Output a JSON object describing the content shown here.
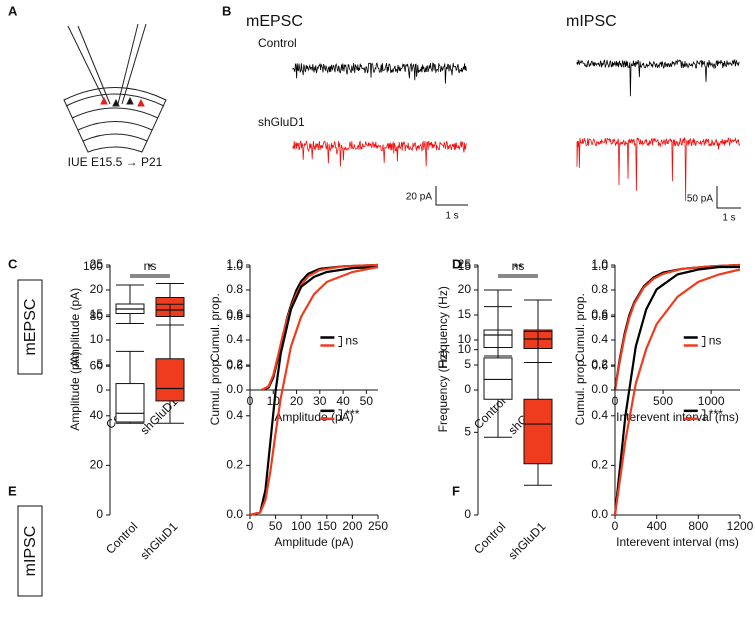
{
  "panel_labels": [
    "A",
    "B",
    "C",
    "D",
    "E",
    "F"
  ],
  "diagram": {
    "caption": "IUE E15.5 → P21"
  },
  "traces": {
    "columns": [
      "mEPSC",
      "mIPSC"
    ],
    "rows": [
      "Control",
      "shGluD1"
    ],
    "scalebars": [
      {
        "y": "20 pA",
        "x": "1 s"
      },
      {
        "y": "50 pA",
        "x": "1 s"
      }
    ]
  },
  "row_labels": [
    "mEPSC",
    "mIPSC"
  ],
  "chart_data": [
    {
      "type": "box",
      "ylabel": "Amplitude (pA)",
      "categories": [
        "Control",
        "shGluD1"
      ],
      "colors": [
        "#ffffff",
        "#f03c1e"
      ],
      "boxes": [
        {
          "min": 13.3,
          "q1": 15.3,
          "median": 16.2,
          "q3": 17.2,
          "max": 21
        },
        {
          "min": 13,
          "q1": 14.7,
          "median": 16,
          "q3": 18.5,
          "max": 21.3
        }
      ],
      "significance": "ns",
      "ylim": [
        0,
        25
      ],
      "yticks": [
        0,
        5,
        10,
        15,
        20,
        25
      ]
    },
    {
      "type": "cdf",
      "xlabel": "Amplitude (pA)",
      "ylabel": "Cumul. prop.",
      "annotation": "ns",
      "series": [
        {
          "color": "#000000",
          "x": [
            5,
            8,
            10,
            12,
            14,
            16,
            18,
            20,
            22,
            25,
            30,
            40,
            55
          ],
          "values": [
            0,
            0.02,
            0.1,
            0.25,
            0.42,
            0.58,
            0.7,
            0.8,
            0.87,
            0.93,
            0.97,
            0.99,
            1
          ]
        },
        {
          "color": "#f03c1e",
          "x": [
            5,
            8,
            10,
            12,
            14,
            16,
            18,
            20,
            22,
            25,
            30,
            40,
            55
          ],
          "values": [
            0,
            0.03,
            0.12,
            0.27,
            0.43,
            0.57,
            0.68,
            0.77,
            0.84,
            0.91,
            0.96,
            0.99,
            1
          ]
        }
      ],
      "xlim": [
        0,
        55
      ],
      "xticks": [
        0,
        10,
        20,
        30,
        40,
        50
      ],
      "ylim": [
        0,
        1
      ],
      "yticks": [
        {
          "value": 0,
          "label": "0.0"
        },
        0.2,
        0.4,
        0.6,
        0.8,
        {
          "value": 1,
          "label": "1.0"
        }
      ]
    },
    {
      "type": "box",
      "ylabel": "Frequency (Hz)",
      "categories": [
        "Control",
        "shGluD1"
      ],
      "colors": [
        "#ffffff",
        "#f03c1e"
      ],
      "boxes": [
        {
          "min": 6.8,
          "q1": 8.5,
          "median": 11,
          "q3": 12,
          "max": 20
        },
        {
          "min": 5.5,
          "q1": 8.3,
          "median": 10.2,
          "q3": 12,
          "max": 18
        }
      ],
      "significance": "ns",
      "ylim": [
        0,
        25
      ],
      "yticks": [
        0,
        5,
        10,
        15,
        20,
        25
      ]
    },
    {
      "type": "cdf",
      "xlabel": "Interevent interval (ms)",
      "ylabel": "Cumul. prop.",
      "annotation": "ns",
      "series": [
        {
          "color": "#000000",
          "x": [
            0,
            50,
            100,
            150,
            200,
            300,
            400,
            500,
            700,
            1000,
            1300
          ],
          "values": [
            0,
            0.25,
            0.45,
            0.6,
            0.7,
            0.83,
            0.9,
            0.94,
            0.97,
            0.99,
            1
          ]
        },
        {
          "color": "#f03c1e",
          "x": [
            0,
            50,
            100,
            150,
            200,
            300,
            400,
            500,
            700,
            1000,
            1300
          ],
          "values": [
            0,
            0.23,
            0.43,
            0.58,
            0.69,
            0.82,
            0.89,
            0.93,
            0.97,
            0.99,
            1
          ]
        }
      ],
      "xlim": [
        0,
        1300
      ],
      "xticks": [
        0,
        500,
        1000
      ],
      "ylim": [
        0,
        1
      ],
      "yticks": [
        {
          "value": 0,
          "label": "0.0"
        },
        0.2,
        0.4,
        0.6,
        0.8,
        {
          "value": 1,
          "label": "1.0"
        }
      ]
    },
    {
      "type": "box",
      "ylabel": "Amplitude (pA)",
      "categories": [
        "Control",
        "shGluD1"
      ],
      "colors": [
        "#ffffff",
        "#f03c1e"
      ],
      "boxes": [
        {
          "min": 37,
          "q1": 37.5,
          "median": 41,
          "q3": 53,
          "max": 66
        },
        {
          "min": 37,
          "q1": 46,
          "median": 51,
          "q3": 63,
          "max": 85
        }
      ],
      "significance": "*",
      "ylim": [
        0,
        100
      ],
      "yticks": [
        0,
        20,
        40,
        60,
        80,
        100
      ]
    },
    {
      "type": "cdf",
      "xlabel": "Amplitude (pA)",
      "ylabel": "Cumul. prop.",
      "annotation": "***",
      "series": [
        {
          "color": "#000000",
          "x": [
            0,
            20,
            30,
            40,
            50,
            60,
            80,
            100,
            125,
            150,
            200,
            250
          ],
          "values": [
            0,
            0.01,
            0.1,
            0.3,
            0.5,
            0.65,
            0.83,
            0.92,
            0.96,
            0.98,
            0.995,
            1
          ]
        },
        {
          "color": "#f03c1e",
          "x": [
            0,
            20,
            30,
            40,
            50,
            60,
            80,
            100,
            125,
            150,
            200,
            250
          ],
          "values": [
            0,
            0.01,
            0.06,
            0.18,
            0.33,
            0.47,
            0.68,
            0.8,
            0.89,
            0.94,
            0.98,
            1
          ]
        }
      ],
      "xlim": [
        0,
        250
      ],
      "xticks": [
        0,
        50,
        100,
        150,
        200,
        250
      ],
      "ylim": [
        0,
        1
      ],
      "yticks": [
        {
          "value": 0,
          "label": "0.0"
        },
        0.2,
        0.4,
        0.6,
        0.8,
        {
          "value": 1,
          "label": "1.0"
        }
      ]
    },
    {
      "type": "box",
      "ylabel": "Frequency (Hz)",
      "categories": [
        "Control",
        "shGluD1"
      ],
      "colors": [
        "#ffffff",
        "#f03c1e"
      ],
      "boxes": [
        {
          "min": 4.7,
          "q1": 7,
          "median": 8.2,
          "q3": 9.5,
          "max": 12.6
        },
        {
          "min": 1.8,
          "q1": 3.1,
          "median": 5.5,
          "q3": 7,
          "max": 11.1
        }
      ],
      "significance": "**",
      "ylim": [
        0,
        15
      ],
      "yticks": [
        0,
        5,
        10,
        15
      ]
    },
    {
      "type": "cdf",
      "xlabel": "Interevent interval (ms)",
      "ylabel": "Cumul. prop.",
      "annotation": "***",
      "series": [
        {
          "color": "#000000",
          "x": [
            0,
            50,
            100,
            200,
            300,
            400,
            600,
            800,
            1000,
            1200
          ],
          "values": [
            0,
            0.2,
            0.4,
            0.68,
            0.83,
            0.91,
            0.97,
            0.99,
            1,
            1
          ]
        },
        {
          "color": "#f03c1e",
          "x": [
            0,
            50,
            100,
            200,
            300,
            400,
            600,
            800,
            1000,
            1200
          ],
          "values": [
            0,
            0.15,
            0.3,
            0.53,
            0.67,
            0.77,
            0.88,
            0.94,
            0.97,
            0.99
          ]
        }
      ],
      "xlim": [
        0,
        1200
      ],
      "xticks": [
        0,
        400,
        800,
        1200
      ],
      "ylim": [
        0,
        1
      ],
      "yticks": [
        {
          "value": 0,
          "label": "0.0"
        },
        0.2,
        0.4,
        0.6,
        0.8,
        {
          "value": 1,
          "label": "1.0"
        }
      ]
    }
  ]
}
